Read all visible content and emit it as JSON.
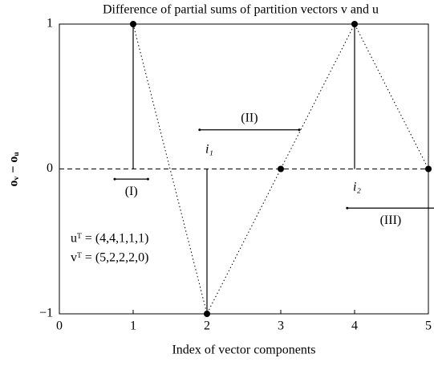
{
  "chart_data": {
    "type": "stem",
    "title": "Difference of partial sums of partition vectors v and u",
    "xlabel": "Index of vector components",
    "ylabel": "oᵥ − oᵤ",
    "x": [
      1,
      2,
      3,
      4,
      5
    ],
    "values": [
      1,
      -1,
      0,
      1,
      0
    ],
    "color": "#000000",
    "xlim": [
      0,
      5
    ],
    "ylim": [
      -1,
      1
    ],
    "xticks": [
      0,
      1,
      2,
      3,
      4,
      5
    ],
    "yticks": [
      {
        "value": -1,
        "label": "−1"
      },
      0,
      1
    ],
    "intervals": [
      {
        "label": "(I)",
        "x": [
          0.75,
          1.2
        ],
        "y": -0.07
      },
      {
        "label": "(II)",
        "x": [
          1.9,
          3.25
        ],
        "y": 0.27
      },
      {
        "label": "(III)",
        "x": [
          3.9,
          5.5
        ],
        "y": -0.27
      }
    ],
    "point_labels": [
      {
        "label": "i₁",
        "x": 2,
        "y": 0.13
      },
      {
        "label": "i₂",
        "x": 4,
        "y": -0.13
      }
    ],
    "notes": [
      "uᵀ = (4,4,1,1,1)",
      "vᵀ = (5,2,2,2,0)"
    ]
  }
}
